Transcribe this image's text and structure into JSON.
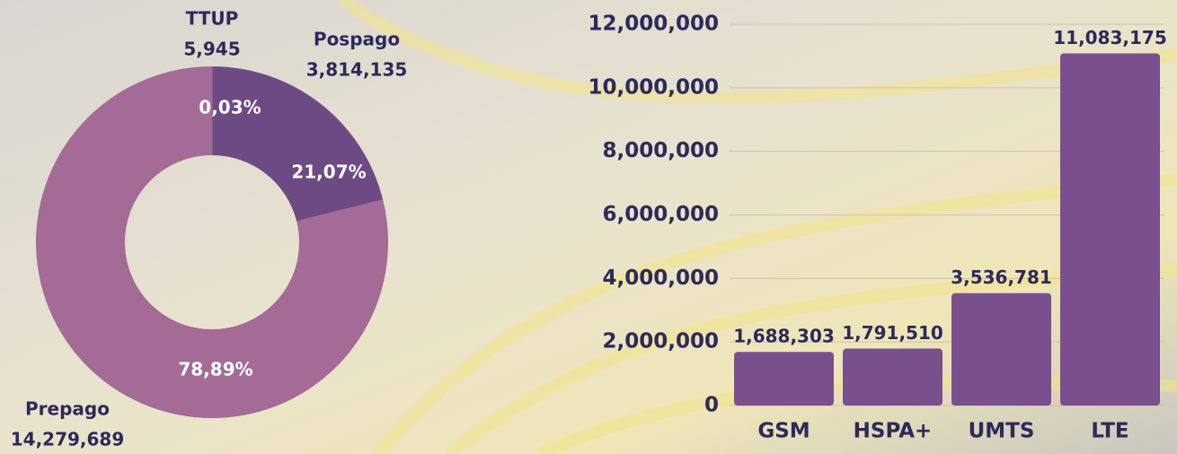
{
  "chart_data": [
    {
      "type": "donut",
      "categories": [
        "TTUP",
        "Pospago",
        "Prepago"
      ],
      "values": [
        5945,
        3814135,
        14279689
      ],
      "value_labels": [
        "5,945",
        "3,814,135",
        "14,279,689"
      ],
      "percentages": [
        0.03,
        21.07,
        78.89
      ],
      "percentage_labels": [
        "0,03%",
        "21,07%",
        "78,89%"
      ],
      "colors": [
        "#8a5c8f",
        "#6e4a85",
        "#a36b96"
      ]
    },
    {
      "type": "bar",
      "categories": [
        "GSM",
        "HSPA+",
        "UMTS",
        "LTE"
      ],
      "values": [
        1688303,
        1791510,
        3536781,
        11083175
      ],
      "value_labels": [
        "1,688,303",
        "1,791,510",
        "3,536,781",
        "11,083,175"
      ],
      "color": "#7a4f8e",
      "ylim": [
        0,
        12000000
      ],
      "yticks": [
        0,
        {
          "value": 2000000,
          "label": "2,000,000"
        },
        {
          "value": 4000000,
          "label": "4,000,000"
        },
        {
          "value": 6000000,
          "label": "6,000,000"
        },
        {
          "value": 8000000,
          "label": "8,000,000"
        },
        {
          "value": 10000000,
          "label": "10,000,000"
        },
        {
          "value": 12000000,
          "label": "12,000,000"
        }
      ],
      "grid": true
    }
  ]
}
